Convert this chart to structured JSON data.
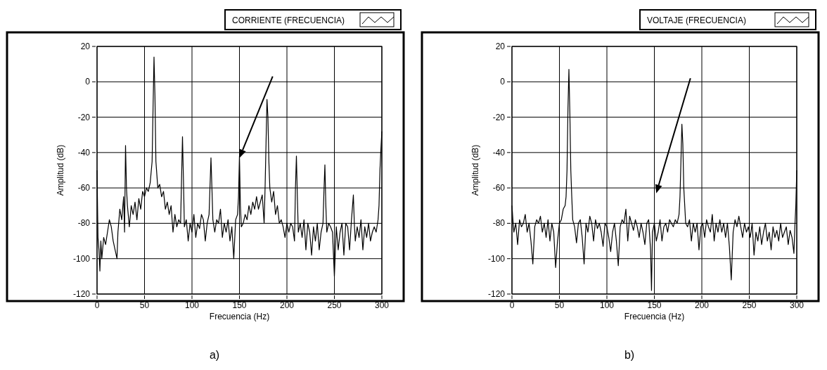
{
  "chart_data": [
    {
      "type": "line",
      "xlabel": "Frecuencia (Hz)",
      "ylabel": "Amplitud (dB)",
      "xlim": [
        0,
        300
      ],
      "xticks": [
        0,
        50,
        100,
        150,
        200,
        250,
        300
      ],
      "ylim": [
        -120,
        20
      ],
      "yticks": [
        -120,
        -100,
        -80,
        -60,
        -40,
        -20,
        0,
        20
      ],
      "grid": true,
      "legend": "top right",
      "annotations": [
        "a)"
      ],
      "x": [
        0,
        0.5,
        1,
        2,
        3,
        4,
        5,
        7,
        9,
        11,
        13,
        15,
        17,
        19,
        21,
        22,
        24,
        26,
        28,
        29,
        30,
        31,
        32,
        34,
        36,
        38,
        40,
        42,
        44,
        46,
        48,
        50,
        52,
        54,
        56,
        58,
        59,
        60,
        61,
        62,
        64,
        66,
        68,
        70,
        72,
        74,
        76,
        78,
        80,
        82,
        84,
        86,
        88,
        90,
        91,
        92,
        94,
        96,
        98,
        100,
        102,
        104,
        106,
        108,
        110,
        112,
        114,
        116,
        118,
        120,
        121,
        122,
        124,
        126,
        128,
        130,
        132,
        134,
        136,
        138,
        140,
        142,
        144,
        146,
        148,
        149,
        150,
        151,
        152,
        154,
        156,
        158,
        160,
        162,
        164,
        166,
        168,
        170,
        172,
        174,
        176,
        177,
        178,
        179,
        180,
        181,
        182,
        184,
        186,
        188,
        190,
        192,
        194,
        196,
        198,
        200,
        202,
        204,
        206,
        208,
        209,
        210,
        211,
        212,
        214,
        216,
        218,
        220,
        222,
        224,
        226,
        228,
        230,
        232,
        234,
        236,
        238,
        239,
        240,
        241,
        242,
        244,
        246,
        248,
        250,
        252,
        254,
        256,
        258,
        260,
        262,
        264,
        266,
        268,
        270,
        271,
        272,
        274,
        276,
        278,
        280,
        282,
        284,
        286,
        288,
        290,
        292,
        294,
        296,
        297,
        298,
        299,
        300
      ],
      "series": [
        {
          "name": "CORRIENTE (FRECUENCIA)",
          "color": "#000000",
          "values": [
            -50,
            -70,
            -88,
            -95,
            -107,
            -90,
            -100,
            -88,
            -92,
            -85,
            -78,
            -82,
            -90,
            -95,
            -100,
            -85,
            -72,
            -78,
            -65,
            -85,
            -36,
            -60,
            -70,
            -82,
            -70,
            -75,
            -68,
            -78,
            -66,
            -72,
            -62,
            -65,
            -60,
            -62,
            -57,
            -45,
            -15,
            14,
            -8,
            -45,
            -60,
            -58,
            -65,
            -62,
            -72,
            -68,
            -75,
            -70,
            -85,
            -75,
            -82,
            -78,
            -80,
            -31,
            -55,
            -82,
            -78,
            -90,
            -80,
            -85,
            -75,
            -88,
            -80,
            -83,
            -75,
            -78,
            -90,
            -80,
            -75,
            -43,
            -60,
            -78,
            -85,
            -78,
            -80,
            -72,
            -88,
            -80,
            -85,
            -78,
            -90,
            -82,
            -100,
            -78,
            -75,
            -65,
            -42,
            -70,
            -82,
            -80,
            -75,
            -78,
            -70,
            -75,
            -68,
            -72,
            -65,
            -72,
            -68,
            -64,
            -80,
            -60,
            -35,
            -10,
            -20,
            -45,
            -60,
            -68,
            -62,
            -75,
            -70,
            -80,
            -78,
            -82,
            -88,
            -80,
            -85,
            -80,
            -82,
            -90,
            -60,
            -42,
            -65,
            -85,
            -80,
            -88,
            -78,
            -95,
            -80,
            -85,
            -98,
            -82,
            -90,
            -80,
            -95,
            -85,
            -80,
            -62,
            -47,
            -70,
            -85,
            -80,
            -82,
            -85,
            -110,
            -82,
            -95,
            -85,
            -80,
            -98,
            -80,
            -82,
            -95,
            -78,
            -64,
            -80,
            -90,
            -82,
            -88,
            -78,
            -95,
            -82,
            -88,
            -80,
            -90,
            -85,
            -82,
            -85,
            -78,
            -70,
            -50,
            -38,
            -28
          ]
        }
      ]
    },
    {
      "type": "line",
      "xlabel": "Frecuencia (Hz)",
      "ylabel": "Amplitud (dB)",
      "xlim": [
        0,
        300
      ],
      "xticks": [
        0,
        50,
        100,
        150,
        200,
        250,
        300
      ],
      "ylim": [
        -120,
        20
      ],
      "yticks": [
        -120,
        -100,
        -80,
        -60,
        -40,
        -20,
        0,
        20
      ],
      "grid": true,
      "legend": "top right",
      "annotations": [
        "b)"
      ],
      "x": [
        0,
        1,
        2,
        4,
        6,
        8,
        10,
        12,
        14,
        16,
        18,
        20,
        22,
        24,
        26,
        28,
        30,
        32,
        34,
        36,
        38,
        40,
        42,
        44,
        46,
        48,
        50,
        52,
        54,
        56,
        57,
        58,
        59,
        60,
        61,
        62,
        63,
        64,
        66,
        68,
        70,
        72,
        74,
        76,
        78,
        80,
        82,
        84,
        86,
        88,
        90,
        92,
        94,
        96,
        98,
        100,
        102,
        104,
        106,
        108,
        110,
        112,
        114,
        116,
        118,
        120,
        122,
        124,
        126,
        128,
        130,
        132,
        134,
        136,
        138,
        140,
        142,
        144,
        146,
        147,
        148,
        150,
        152,
        154,
        156,
        158,
        160,
        162,
        164,
        166,
        168,
        170,
        172,
        174,
        176,
        177,
        178,
        179,
        180,
        181,
        182,
        183,
        185,
        187,
        189,
        191,
        193,
        195,
        197,
        199,
        201,
        203,
        205,
        207,
        209,
        211,
        213,
        215,
        217,
        219,
        221,
        223,
        225,
        227,
        229,
        231,
        233,
        235,
        237,
        239,
        241,
        243,
        245,
        247,
        249,
        251,
        253,
        255,
        257,
        259,
        261,
        263,
        265,
        267,
        269,
        271,
        273,
        275,
        277,
        279,
        281,
        283,
        285,
        287,
        289,
        291,
        293,
        295,
        297,
        298,
        299,
        300
      ],
      "series": [
        {
          "name": "VOLTAJE (FRECUENCIA)",
          "color": "#000000",
          "values": [
            -70,
            -78,
            -85,
            -80,
            -92,
            -78,
            -82,
            -80,
            -75,
            -85,
            -80,
            -90,
            -103,
            -82,
            -78,
            -80,
            -76,
            -85,
            -80,
            -88,
            -78,
            -90,
            -80,
            -85,
            -105,
            -90,
            -80,
            -78,
            -72,
            -70,
            -65,
            -50,
            -15,
            7,
            -18,
            -50,
            -65,
            -78,
            -82,
            -91,
            -80,
            -78,
            -88,
            -103,
            -80,
            -85,
            -76,
            -80,
            -90,
            -78,
            -83,
            -80,
            -85,
            -93,
            -80,
            -82,
            -88,
            -96,
            -85,
            -80,
            -90,
            -104,
            -82,
            -78,
            -80,
            -72,
            -90,
            -76,
            -80,
            -84,
            -78,
            -82,
            -88,
            -80,
            -85,
            -92,
            -80,
            -78,
            -95,
            -118,
            -85,
            -80,
            -90,
            -85,
            -78,
            -90,
            -82,
            -80,
            -85,
            -78,
            -80,
            -82,
            -78,
            -80,
            -75,
            -65,
            -45,
            -24,
            -35,
            -60,
            -70,
            -80,
            -82,
            -78,
            -90,
            -80,
            -85,
            -80,
            -95,
            -82,
            -80,
            -88,
            -78,
            -82,
            -85,
            -75,
            -90,
            -80,
            -85,
            -78,
            -85,
            -80,
            -88,
            -80,
            -93,
            -112,
            -85,
            -78,
            -82,
            -76,
            -82,
            -88,
            -80,
            -85,
            -82,
            -88,
            -80,
            -98,
            -85,
            -90,
            -82,
            -92,
            -85,
            -80,
            -90,
            -85,
            -95,
            -82,
            -88,
            -84,
            -90,
            -80,
            -88,
            -85,
            -82,
            -92,
            -84,
            -88,
            -97,
            -82,
            -70,
            -50
          ]
        }
      ]
    }
  ]
}
